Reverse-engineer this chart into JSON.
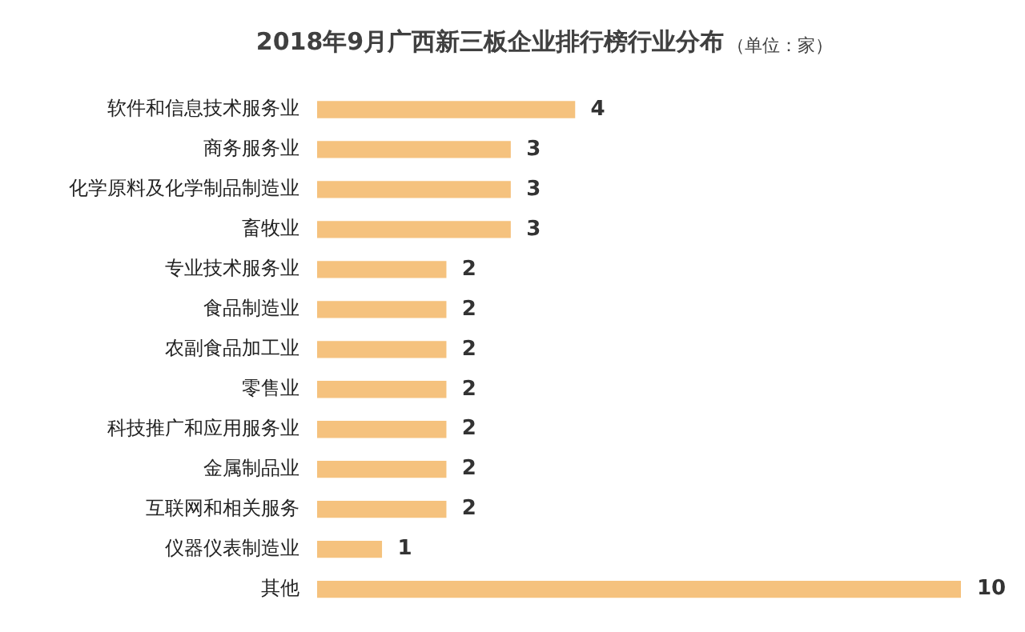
{
  "chart_data": {
    "type": "bar",
    "orientation": "horizontal",
    "title": "2018年9月广西新三板企业排行榜行业分布",
    "subtitle": "（单位：家）",
    "categories": [
      "软件和信息技术服务业",
      "商务服务业",
      "化学原料及化学制品制造业",
      "畜牧业",
      "专业技术服务业",
      "食品制造业",
      "农副食品加工业",
      "零售业",
      "科技推广和应用服务业",
      "金属制品业",
      "互联网和相关服务",
      "仪器仪表制造业",
      "其他"
    ],
    "values": [
      4,
      3,
      3,
      3,
      2,
      2,
      2,
      2,
      2,
      2,
      2,
      1,
      10
    ],
    "color": "#f5c27e",
    "data_labels": true,
    "legend": false
  }
}
